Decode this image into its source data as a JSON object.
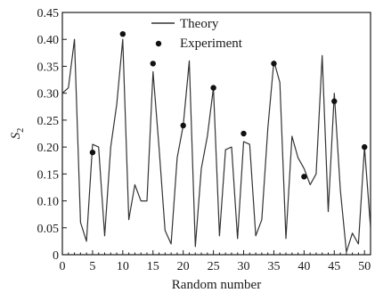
{
  "chart_data": {
    "type": "line",
    "xlabel": "Random number",
    "ylabel": "S",
    "ylabel_subscript": "2",
    "xlim": [
      0,
      51
    ],
    "ylim": [
      0,
      0.45
    ],
    "xticks": [
      0,
      5,
      10,
      15,
      20,
      25,
      30,
      35,
      40,
      45,
      50
    ],
    "yticks": [
      0,
      0.05,
      0.1,
      0.15,
      0.2,
      0.25,
      0.3,
      0.35,
      0.4,
      0.45
    ],
    "ytick_labels": [
      "0",
      "0.05",
      "0.10",
      "0.15",
      "0.20",
      "0.25",
      "0.30",
      "0.35",
      "0.40",
      "0.45"
    ],
    "legend_position": "top-center",
    "grid": false,
    "series": [
      {
        "name": "Theory",
        "style": "line",
        "color": "#333333",
        "x": [
          0,
          1,
          2,
          3,
          4,
          5,
          6,
          7,
          8,
          9,
          10,
          11,
          12,
          13,
          14,
          15,
          16,
          17,
          18,
          19,
          20,
          21,
          22,
          23,
          24,
          25,
          26,
          27,
          28,
          29,
          30,
          31,
          32,
          33,
          34,
          35,
          36,
          37,
          38,
          39,
          40,
          41,
          42,
          43,
          44,
          45,
          46,
          47,
          48,
          49,
          50,
          51
        ],
        "y": [
          0.3,
          0.31,
          0.4,
          0.06,
          0.025,
          0.205,
          0.2,
          0.035,
          0.2,
          0.28,
          0.4,
          0.065,
          0.13,
          0.1,
          0.1,
          0.34,
          0.2,
          0.045,
          0.02,
          0.18,
          0.24,
          0.36,
          0.015,
          0.16,
          0.22,
          0.31,
          0.035,
          0.195,
          0.2,
          0.03,
          0.21,
          0.205,
          0.035,
          0.065,
          0.235,
          0.36,
          0.32,
          0.03,
          0.22,
          0.18,
          0.16,
          0.13,
          0.15,
          0.37,
          0.08,
          0.3,
          0.12,
          0.005,
          0.04,
          0.02,
          0.2,
          0.05
        ]
      },
      {
        "name": "Experiment",
        "style": "scatter",
        "color": "#111111",
        "x": [
          5,
          10,
          15,
          20,
          25,
          30,
          35,
          40,
          45,
          50
        ],
        "y": [
          0.19,
          0.41,
          0.355,
          0.24,
          0.31,
          0.225,
          0.355,
          0.145,
          0.285,
          0.2
        ]
      }
    ]
  }
}
